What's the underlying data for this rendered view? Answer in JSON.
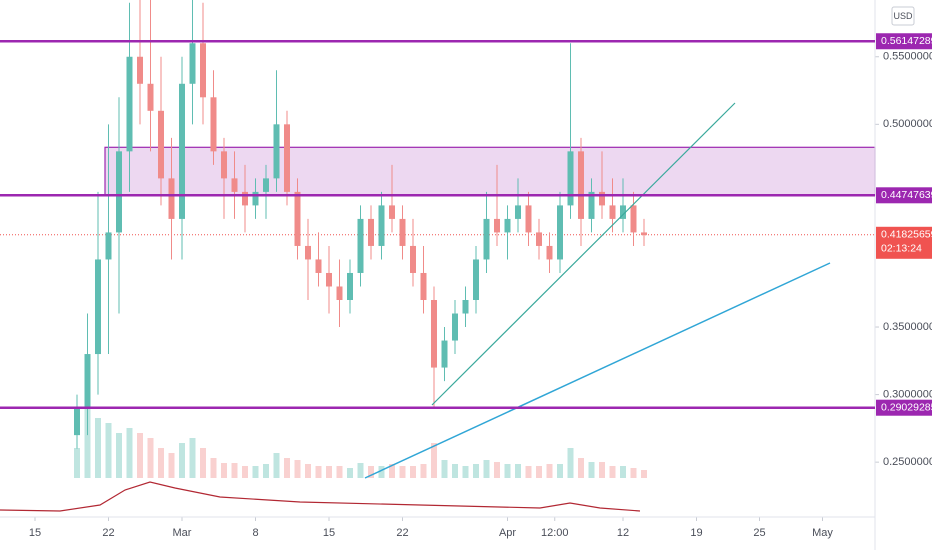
{
  "chart_data": {
    "type": "candlestick",
    "currency": "USD",
    "up_color": "#5fbdb2",
    "down_color": "#f08b89",
    "level_color": "#9c27b0",
    "ylim": [
      0.222,
      0.592
    ],
    "yticks": [
      {
        "value": 0.55,
        "label": "0.55000000"
      },
      {
        "value": 0.5,
        "label": "0.50000000"
      },
      {
        "value": 0.35,
        "label": "0.35000000"
      },
      {
        "value": 0.3,
        "label": "0.30000000"
      },
      {
        "value": 0.25,
        "label": "0.25000000"
      }
    ],
    "xticks": [
      {
        "value": "2-15",
        "label": "15"
      },
      {
        "value": "2-22",
        "label": "22"
      },
      {
        "value": "3-1",
        "label": "Mar"
      },
      {
        "value": "3-8",
        "label": "8"
      },
      {
        "value": "3-15",
        "label": "15"
      },
      {
        "value": "3-22",
        "label": "22"
      },
      {
        "value": "4-1",
        "label": "Apr"
      },
      {
        "value": "4-5 12:00",
        "label": "12:00"
      },
      {
        "value": "4-12",
        "label": "12"
      },
      {
        "value": "4-19",
        "label": "19"
      },
      {
        "value": "4-25",
        "label": "25"
      },
      {
        "value": "5-1",
        "label": "May"
      }
    ],
    "levels": [
      {
        "value": 0.56147289,
        "label": "0.56147289"
      },
      {
        "value": 0.44747639,
        "label": "0.44747639"
      },
      {
        "value": 0.29029285,
        "label": "0.29029285"
      }
    ],
    "zone": [
      0.44747639,
      0.483
    ],
    "last_price": {
      "value": 0.41825659,
      "label": "0.41825659",
      "countdown": "02:13:24"
    },
    "x": [
      "2-19",
      "2-20",
      "2-21",
      "2-22",
      "2-23",
      "2-24",
      "2-25",
      "2-26",
      "2-27",
      "2-28",
      "3-1",
      "3-2",
      "3-3",
      "3-4",
      "3-5",
      "3-6",
      "3-7",
      "3-8",
      "3-9",
      "3-10",
      "3-11",
      "3-12",
      "3-13",
      "3-14",
      "3-15",
      "3-16",
      "3-17",
      "3-18",
      "3-19",
      "3-20",
      "3-21",
      "3-22",
      "3-23",
      "3-24",
      "3-25",
      "3-26",
      "3-27",
      "3-28",
      "3-29",
      "3-30",
      "3-31",
      "4-1",
      "4-2",
      "4-3",
      "4-4",
      "4-5",
      "4-6",
      "4-7",
      "4-8",
      "4-9",
      "4-10",
      "4-11",
      "4-12",
      "4-13",
      "4-14"
    ],
    "open": [
      0.27,
      0.29,
      0.33,
      0.4,
      0.42,
      0.48,
      0.55,
      0.53,
      0.51,
      0.46,
      0.43,
      0.53,
      0.56,
      0.52,
      0.48,
      0.46,
      0.45,
      0.44,
      0.45,
      0.46,
      0.5,
      0.45,
      0.41,
      0.4,
      0.39,
      0.38,
      0.37,
      0.39,
      0.43,
      0.41,
      0.44,
      0.43,
      0.41,
      0.39,
      0.37,
      0.32,
      0.34,
      0.36,
      0.37,
      0.4,
      0.43,
      0.42,
      0.43,
      0.44,
      0.42,
      0.41,
      0.4,
      0.44,
      0.48,
      0.43,
      0.45,
      0.44,
      0.43,
      0.44,
      0.42
    ],
    "high": [
      0.3,
      0.36,
      0.45,
      0.5,
      0.52,
      0.59,
      0.6,
      0.6,
      0.55,
      0.49,
      0.55,
      0.6,
      0.59,
      0.54,
      0.49,
      0.48,
      0.47,
      0.46,
      0.47,
      0.54,
      0.51,
      0.46,
      0.43,
      0.42,
      0.41,
      0.4,
      0.4,
      0.44,
      0.44,
      0.45,
      0.47,
      0.44,
      0.43,
      0.41,
      0.38,
      0.35,
      0.37,
      0.38,
      0.41,
      0.45,
      0.47,
      0.44,
      0.46,
      0.45,
      0.43,
      0.42,
      0.45,
      0.56,
      0.49,
      0.46,
      0.48,
      0.46,
      0.46,
      0.45,
      0.43
    ],
    "low": [
      0.26,
      0.27,
      0.3,
      0.33,
      0.36,
      0.45,
      0.5,
      0.48,
      0.44,
      0.4,
      0.4,
      0.5,
      0.5,
      0.47,
      0.43,
      0.43,
      0.42,
      0.43,
      0.43,
      0.45,
      0.44,
      0.4,
      0.37,
      0.38,
      0.36,
      0.35,
      0.36,
      0.38,
      0.4,
      0.4,
      0.42,
      0.4,
      0.38,
      0.36,
      0.29,
      0.31,
      0.33,
      0.35,
      0.36,
      0.39,
      0.41,
      0.4,
      0.42,
      0.41,
      0.4,
      0.39,
      0.39,
      0.43,
      0.41,
      0.42,
      0.43,
      0.42,
      0.42,
      0.41,
      0.41
    ],
    "close": [
      0.29,
      0.33,
      0.4,
      0.42,
      0.48,
      0.55,
      0.53,
      0.51,
      0.46,
      0.43,
      0.53,
      0.56,
      0.52,
      0.48,
      0.46,
      0.45,
      0.44,
      0.45,
      0.46,
      0.5,
      0.45,
      0.41,
      0.4,
      0.39,
      0.38,
      0.37,
      0.39,
      0.43,
      0.41,
      0.44,
      0.43,
      0.41,
      0.39,
      0.37,
      0.32,
      0.34,
      0.36,
      0.37,
      0.4,
      0.43,
      0.42,
      0.43,
      0.44,
      0.42,
      0.41,
      0.4,
      0.44,
      0.48,
      0.43,
      0.45,
      0.44,
      0.43,
      0.44,
      0.42,
      0.418
    ],
    "volume": [
      30,
      70,
      60,
      55,
      45,
      50,
      45,
      40,
      30,
      25,
      35,
      40,
      30,
      20,
      15,
      15,
      12,
      12,
      14,
      25,
      20,
      18,
      14,
      12,
      12,
      12,
      10,
      15,
      12,
      12,
      14,
      12,
      12,
      14,
      35,
      18,
      14,
      12,
      14,
      18,
      16,
      14,
      14,
      12,
      12,
      14,
      14,
      30,
      20,
      16,
      16,
      12,
      12,
      10,
      8
    ]
  }
}
